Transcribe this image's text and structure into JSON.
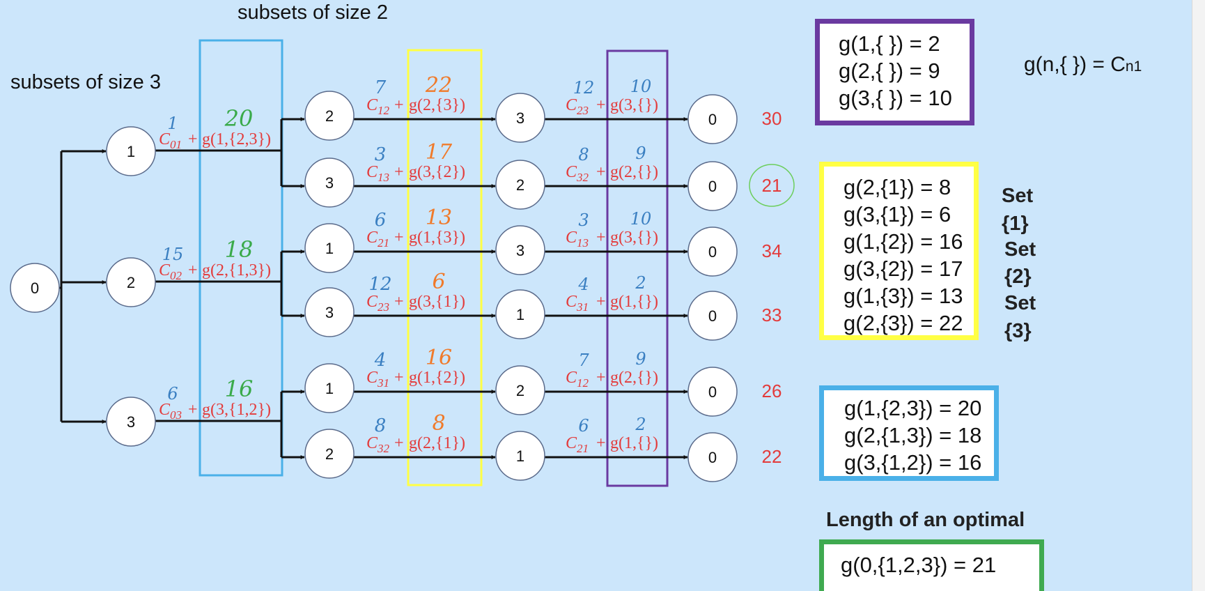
{
  "headings": {
    "size2": "subsets of size 2",
    "size3": "subsets of size 3"
  },
  "formula": {
    "main": "g(n,{ }) = C",
    "sub": "n1"
  },
  "empty_box": {
    "lines": [
      "g(1,{ }) = 2",
      "g(2,{ }) = 9",
      "g(3,{ }) = 10"
    ],
    "color": "#6a3aa0"
  },
  "size1_box": {
    "lines": [
      "g(2,{1}) = 8",
      "g(3,{1}) = 6",
      "g(1,{2}) = 16",
      "g(3,{2}) = 17",
      "g(1,{3}) = 13",
      "g(2,{3}) = 22"
    ],
    "color": "#ffff44"
  },
  "size2_box": {
    "lines": [
      "g(1,{2,3}) = 20",
      "g(2,{1,3}) = 18",
      "g(3,{1,2}) = 16"
    ],
    "color": "#4ab0e8"
  },
  "set_labels": [
    "Set",
    "{1}",
    "Set",
    "{2}",
    "Set",
    "{3}"
  ],
  "optimal": {
    "label": "Length of an optimal tour",
    "value": "g(0,{1,2,3}) = 21",
    "color": "#3faa50"
  },
  "colors": {
    "formula": "#e33b3b",
    "cost_annotation": "#3a7fc1",
    "g_annotation_level2": "#3aaa4a",
    "g_annotation_level3": "#f07a2a",
    "total": "#e33b3b",
    "circle_mark": "#6cce5c",
    "blue_column": "#4ab0e8",
    "yellow_column": "#ffff44",
    "purple_column": "#6a3aa0"
  },
  "tree": {
    "root": "0",
    "level1": [
      {
        "node": "1",
        "cost_sub": "01",
        "g": "g(1,{2,3})",
        "cost_note": "1",
        "g_note": "20"
      },
      {
        "node": "2",
        "cost_sub": "02",
        "g": "g(2,{1,3})",
        "cost_note": "15",
        "g_note": "18"
      },
      {
        "node": "3",
        "cost_sub": "03",
        "g": "g(3,{1,2})",
        "cost_note": "6",
        "g_note": "16"
      }
    ],
    "paths": [
      {
        "n2": "2",
        "c2_sub": "12",
        "g2": "g(2,{3})",
        "c2_note": "7",
        "g2_note": "22",
        "n3": "3",
        "c3_sub": "23",
        "g3": "g(3,{})",
        "c3_note": "12",
        "g3_note": "10",
        "end": "0",
        "total": "30",
        "circled": false
      },
      {
        "n2": "3",
        "c2_sub": "13",
        "g2": "g(3,{2})",
        "c2_note": "3",
        "g2_note": "17",
        "n3": "2",
        "c3_sub": "32",
        "g3": "g(2,{})",
        "c3_note": "8",
        "g3_note": "9",
        "end": "0",
        "total": "21",
        "circled": true
      },
      {
        "n2": "1",
        "c2_sub": "21",
        "g2": "g(1,{3})",
        "c2_note": "6",
        "g2_note": "13",
        "n3": "3",
        "c3_sub": "13",
        "g3": "g(3,{})",
        "c3_note": "3",
        "g3_note": "10",
        "end": "0",
        "total": "34",
        "circled": false
      },
      {
        "n2": "3",
        "c2_sub": "23",
        "g2": "g(3,{1})",
        "c2_note": "12",
        "g2_note": "6",
        "n3": "1",
        "c3_sub": "31",
        "g3": "g(1,{})",
        "c3_note": "4",
        "g3_note": "2",
        "end": "0",
        "total": "33",
        "circled": false
      },
      {
        "n2": "1",
        "c2_sub": "31",
        "g2": "g(1,{2})",
        "c2_note": "4",
        "g2_note": "16",
        "n3": "2",
        "c3_sub": "12",
        "g3": "g(2,{})",
        "c3_note": "7",
        "g3_note": "9",
        "end": "0",
        "total": "26",
        "circled": false
      },
      {
        "n2": "2",
        "c2_sub": "32",
        "g2": "g(2,{1})",
        "c2_note": "8",
        "g2_note": "8",
        "n3": "1",
        "c3_sub": "21",
        "g3": "g(1,{})",
        "c3_note": "6",
        "g3_note": "2",
        "end": "0",
        "total": "22",
        "circled": false
      }
    ]
  }
}
